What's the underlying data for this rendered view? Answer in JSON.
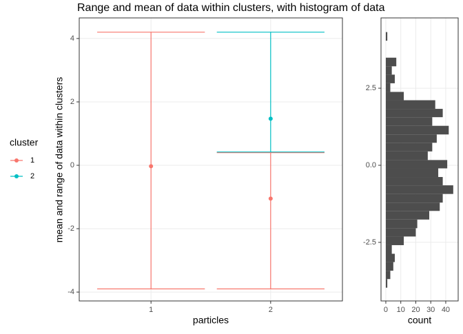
{
  "chart_data": [
    {
      "type": "errorbar",
      "title": "Range and mean of data within clusters, with histogram of data",
      "x_label": "particles",
      "y_label": "mean and range of data within clusters",
      "categories": [
        "1",
        "2"
      ],
      "legend_title": "cluster",
      "series": [
        {
          "name": "1",
          "color": "#f8766d",
          "values": [
            -0.03,
            -1.05
          ],
          "ymin": [
            -3.9,
            -3.9
          ],
          "ymax": [
            4.2,
            0.4
          ]
        },
        {
          "name": "2",
          "color": "#00bfc4",
          "values": [
            null,
            1.47
          ],
          "ymin": [
            null,
            0.42
          ],
          "ymax": [
            null,
            4.2
          ]
        }
      ],
      "ylim": [
        -4.28,
        4.65
      ],
      "yticks": [
        -4,
        -2,
        0,
        2,
        4
      ],
      "grid": true
    },
    {
      "type": "histogram",
      "orientation": "horizontal",
      "x_label": "count",
      "color": "#4d4d4d",
      "bins": [
        -3.97,
        -3.69,
        -3.42,
        -3.14,
        -2.87,
        -2.59,
        -2.31,
        -2.04,
        -1.76,
        -1.48,
        -1.21,
        -0.93,
        -0.65,
        -0.38,
        -0.1,
        0.17,
        0.45,
        0.73,
        1.0,
        1.28,
        1.56,
        1.83,
        2.11,
        2.38,
        2.66,
        2.94,
        3.21,
        3.49,
        3.77,
        4.04,
        4.32
      ],
      "values": [
        1,
        3,
        5,
        6,
        4,
        12,
        20,
        21,
        29,
        36,
        38,
        45,
        38,
        35,
        41,
        28,
        31,
        34,
        42,
        31,
        38,
        33,
        12,
        3,
        6,
        4,
        7,
        0,
        0,
        1
      ],
      "xlim": [
        -3.2,
        48.3
      ],
      "xticks": [
        0,
        10,
        20,
        30,
        40
      ],
      "ylim": [
        -4.4,
        4.78
      ],
      "yticks": [
        -2.5,
        {
          "value": 0,
          "label": "0.0"
        },
        2.5
      ],
      "grid": true
    }
  ]
}
